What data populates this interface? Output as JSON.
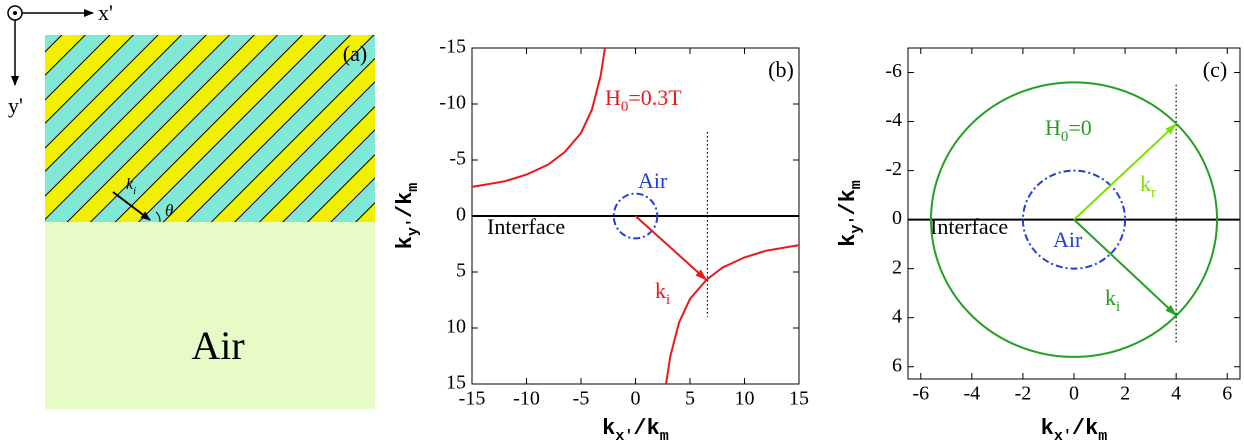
{
  "panel_a": {
    "label": "(a)",
    "x_axis": "x'",
    "y_axis": "y'",
    "wave_vector": [
      {
        "text": "k"
      },
      {
        "text": "i",
        "sub": true
      }
    ],
    "angle": "θ",
    "region": "Air"
  },
  "chart_data": [
    {
      "type": "dispersion",
      "panel_label": "(b)",
      "xlabel": [
        {
          "text": "k"
        },
        {
          "text": "x'",
          "sub": true
        },
        {
          "text": "/k"
        },
        {
          "text": "m",
          "sub": true
        }
      ],
      "ylabel": [
        {
          "text": "k"
        },
        {
          "text": "y'",
          "sub": true
        },
        {
          "text": "/k"
        },
        {
          "text": "m",
          "sub": true
        }
      ],
      "xlim": [
        -15,
        15
      ],
      "ylim": [
        -15,
        15
      ],
      "y_inverted": true,
      "xticks": [
        -15,
        -10,
        -5,
        0,
        5,
        10,
        15
      ],
      "yticks": [
        -15,
        -10,
        -5,
        0,
        5,
        10,
        15
      ],
      "interface": {
        "name": "Interface",
        "value": 0,
        "color": "#000000"
      },
      "series": [
        {
          "name": [
            {
              "text": "H"
            },
            {
              "text": "0",
              "sub": true
            },
            {
              "text": "=0.3T"
            }
          ],
          "color": "#e8191b",
          "branches": [
            {
              "x": [
                -15,
                -12,
                -10,
                -8,
                -6.5,
                -5,
                -4,
                -3.2,
                -2.8
              ],
              "values": [
                -2.6,
                -3.1,
                -3.7,
                -4.6,
                -5.7,
                -7.4,
                -9.5,
                -12.5,
                -15
              ]
            },
            {
              "x": [
                2.8,
                3.2,
                4,
                5,
                6.5,
                8,
                10,
                12,
                15
              ],
              "values": [
                15,
                12.5,
                9.5,
                7.4,
                5.7,
                4.6,
                3.7,
                3.1,
                2.6
              ]
            }
          ]
        },
        {
          "name": [
            {
              "text": "Air"
            }
          ],
          "color": "#1f3fd8",
          "radius": 2,
          "dashed": true
        }
      ],
      "vectors": [
        {
          "name": [
            {
              "text": "k"
            },
            {
              "text": "i",
              "sub": true
            }
          ],
          "color": "#e8191b",
          "x": 6.5,
          "value": 5.7
        }
      ],
      "marker_line": {
        "x": 6.6,
        "values": [
          -7.5,
          9
        ]
      }
    },
    {
      "type": "dispersion",
      "panel_label": "(c)",
      "xlabel": [
        {
          "text": "k"
        },
        {
          "text": "x'",
          "sub": true
        },
        {
          "text": "/k"
        },
        {
          "text": "m",
          "sub": true
        }
      ],
      "ylabel": [
        {
          "text": "k"
        },
        {
          "text": "y'",
          "sub": true
        },
        {
          "text": "/k"
        },
        {
          "text": "m",
          "sub": true
        }
      ],
      "xlim": [
        -6.5,
        6.5
      ],
      "ylim": [
        -7,
        6.5
      ],
      "y_inverted": true,
      "xticks": [
        -6,
        -4,
        -2,
        0,
        2,
        4,
        6
      ],
      "yticks": [
        -6,
        -4,
        -2,
        0,
        2,
        4,
        6
      ],
      "interface": {
        "name": "Interface",
        "value": 0,
        "color": "#000000"
      },
      "series": [
        {
          "name": [
            {
              "text": "H"
            },
            {
              "text": "0",
              "sub": true
            },
            {
              "text": "=0"
            }
          ],
          "color": "#22a022",
          "radius": 5.6
        },
        {
          "name": [
            {
              "text": "Air"
            }
          ],
          "color": "#1f3fd8",
          "radius": 2,
          "dashed": true
        }
      ],
      "vectors": [
        {
          "name": [
            {
              "text": "k"
            },
            {
              "text": "r",
              "sub": true
            }
          ],
          "color": "#7fe000",
          "x": 4,
          "value": -3.9
        },
        {
          "name": [
            {
              "text": "k"
            },
            {
              "text": "i",
              "sub": true
            }
          ],
          "color": "#22a022",
          "x": 4,
          "value": 3.9
        }
      ],
      "marker_line": {
        "x": 4,
        "values": [
          -5.5,
          5
        ]
      }
    }
  ]
}
